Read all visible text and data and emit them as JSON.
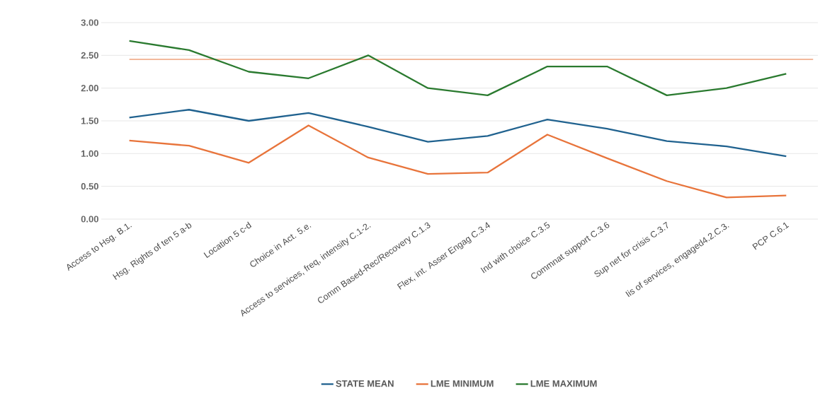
{
  "chart_data": {
    "type": "line",
    "categories": [
      "Access to Hsg. B.1.",
      "Hsg. Rights of ten 5 a-b",
      "Location 5 c-d",
      "Choice in Act. 5.e.",
      "Access to services, freq, intensity   C.1-2.",
      "Comm Based-Rec/Recovery C.1.3",
      "Flex, int. Asser Engag C.3.4",
      "Ind with choice C.3.5",
      "Commnat support C.3.6",
      "Sup net for crisis C.3.7",
      "Iis of services, engaged4.2.C.3.",
      "PCP C.6.1"
    ],
    "series": [
      {
        "name": "STATE MEAN",
        "color": "#20628f",
        "values": [
          1.55,
          1.67,
          1.5,
          1.62,
          1.41,
          1.18,
          1.27,
          1.52,
          1.38,
          1.19,
          1.11,
          0.96
        ]
      },
      {
        "name": "LME MINIMUM",
        "color": "#e8743b",
        "values": [
          1.2,
          1.12,
          0.86,
          1.43,
          0.94,
          0.69,
          0.71,
          1.29,
          0.93,
          0.58,
          0.33,
          0.36
        ]
      },
      {
        "name": "LME MAXIMUM",
        "color": "#2a7a2f",
        "values": [
          2.72,
          2.58,
          2.25,
          2.15,
          2.5,
          2.0,
          1.89,
          2.33,
          2.33,
          1.89,
          2.0,
          2.22
        ]
      }
    ],
    "ref_lines": [
      {
        "axis": "y",
        "value": 2.44,
        "color": "#e8743b"
      }
    ],
    "ylim": [
      0,
      3
    ],
    "yticks": [
      {
        "value": 0,
        "label": "0.00"
      },
      {
        "value": 0.5,
        "label": "0.50"
      },
      {
        "value": 1,
        "label": "1.00"
      },
      {
        "value": 1.5,
        "label": "1.50"
      },
      {
        "value": 2,
        "label": "2.00"
      },
      {
        "value": 2.5,
        "label": "2.50"
      },
      {
        "value": 3,
        "label": "3.00"
      }
    ],
    "grid": "y",
    "legend": "bottom",
    "marker": "none",
    "line_style": "solid"
  }
}
